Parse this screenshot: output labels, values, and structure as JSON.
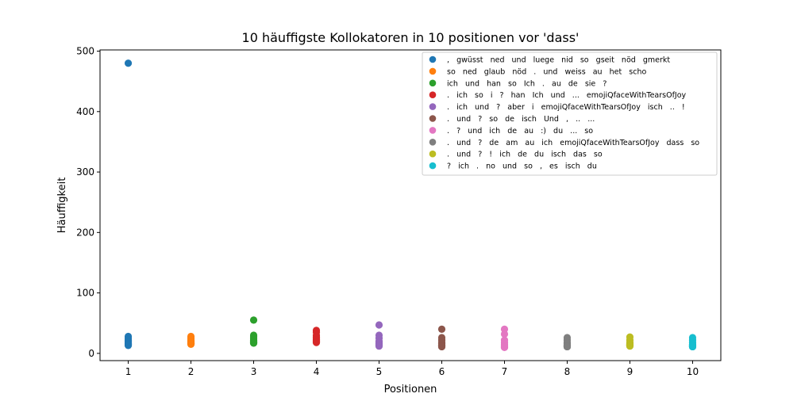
{
  "chart_data": {
    "type": "scatter",
    "title": "10 häuffigste Kollokatoren in 10 positionen vor 'dass'",
    "xlabel": "Positionen",
    "ylabel": "Häuffigkeit",
    "xlim": [
      0.55,
      10.45
    ],
    "ylim": [
      -12,
      502
    ],
    "xticks": [
      1,
      2,
      3,
      4,
      5,
      6,
      7,
      8,
      9,
      10
    ],
    "yticks": [
      0,
      100,
      200,
      300,
      400,
      500
    ],
    "grid": false,
    "legend_position": "top-right",
    "series": [
      {
        "name": ",   gwüsst   ned   und   luege   nid   so   gseit   nöd   gmerkt",
        "color": "#1f77b4",
        "x": 1,
        "values": [
          480,
          28,
          25,
          22,
          20,
          18,
          16,
          15,
          14,
          13
        ]
      },
      {
        "name": "so   ned   glaub   nöd   .   und   weiss   au   het   scho",
        "color": "#ff7f0e",
        "x": 2,
        "values": [
          28,
          25,
          22,
          20,
          19,
          18,
          17,
          16,
          16,
          15
        ]
      },
      {
        "name": "ich   und   han   so   Ich   .   au   de   sie   ?",
        "color": "#2ca02c",
        "x": 3,
        "values": [
          55,
          30,
          28,
          25,
          22,
          20,
          19,
          18,
          17,
          17
        ]
      },
      {
        "name": ".   ich   so   i   ?   han   Ich   und   ...   emojiQfaceWithTearsOfJoy",
        "color": "#d62728",
        "x": 4,
        "values": [
          38,
          35,
          30,
          27,
          25,
          23,
          22,
          20,
          19,
          18
        ]
      },
      {
        "name": ".   ich   und   ?   aber   i   emojiQfaceWithTearsOfJoy   isch   ..   !",
        "color": "#9467bd",
        "x": 5,
        "values": [
          47,
          30,
          25,
          20,
          18,
          16,
          15,
          14,
          13,
          12
        ]
      },
      {
        "name": ".   und   ?   so   de   isch   Und   ,   ..   ...",
        "color": "#8c564b",
        "x": 6,
        "values": [
          40,
          26,
          22,
          18,
          16,
          14,
          13,
          12,
          12,
          11
        ]
      },
      {
        "name": ".   ?   und   ich   de   au   :)   du   ...   so",
        "color": "#e377c2",
        "x": 7,
        "values": [
          40,
          32,
          22,
          18,
          15,
          13,
          12,
          11,
          10,
          10
        ]
      },
      {
        "name": ".   und   ?   de   am   au   ich   emojiQfaceWithTearsOfJoy   dass   so",
        "color": "#7f7f7f",
        "x": 8,
        "values": [
          26,
          22,
          18,
          16,
          14,
          13,
          12,
          12,
          11,
          11
        ]
      },
      {
        "name": ".   und   ?   !   ich   de   du   isch   das   so",
        "color": "#bcbd22",
        "x": 9,
        "values": [
          27,
          22,
          18,
          16,
          15,
          14,
          14,
          13,
          13,
          12
        ]
      },
      {
        "name": "?   ich   .   no   und   so   ,   es   isch   du",
        "color": "#17becf",
        "x": 10,
        "values": [
          26,
          22,
          18,
          15,
          14,
          13,
          12,
          12,
          11,
          11
        ]
      }
    ]
  }
}
